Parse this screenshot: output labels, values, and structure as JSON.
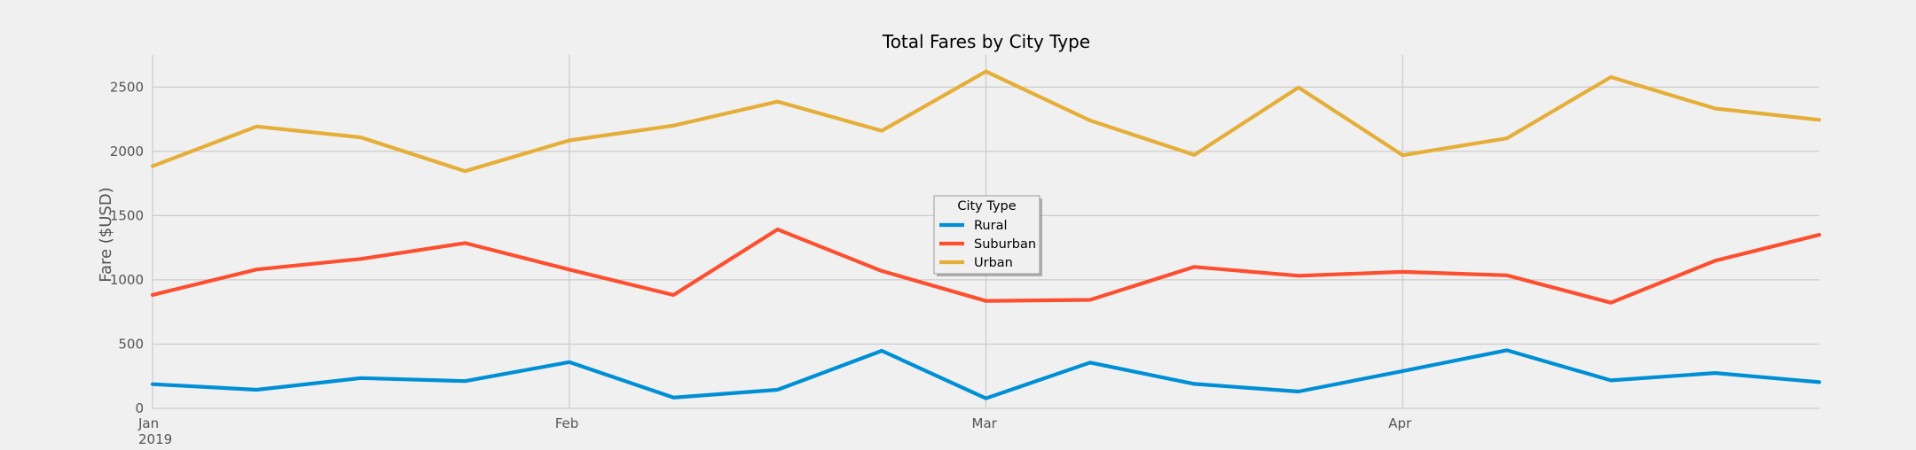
{
  "chart_data": {
    "type": "line",
    "title": "Total Fares by City Type",
    "xlabel": "",
    "ylabel": "Fare ($USD)",
    "x_range": [
      "2019-01-06",
      "2019-04-28"
    ],
    "x": [
      "2019-01-06",
      "2019-01-13",
      "2019-01-20",
      "2019-01-27",
      "2019-02-03",
      "2019-02-10",
      "2019-02-17",
      "2019-02-24",
      "2019-03-03",
      "2019-03-10",
      "2019-03-17",
      "2019-03-24",
      "2019-03-31",
      "2019-04-07",
      "2019-04-14",
      "2019-04-21",
      "2019-04-28"
    ],
    "x_ticks": [
      {
        "date": "2019-01-06",
        "label": "Jan",
        "sublabel": "2019"
      },
      {
        "date": "2019-02-03",
        "label": "Feb",
        "sublabel": ""
      },
      {
        "date": "2019-03-03",
        "label": "Mar",
        "sublabel": ""
      },
      {
        "date": "2019-03-31",
        "label": "Apr",
        "sublabel": ""
      }
    ],
    "ylim": [
      0,
      2750
    ],
    "y_ticks": [
      0,
      500,
      1000,
      1500,
      2000,
      2500
    ],
    "grid": true,
    "legend_title": "City Type",
    "legend_position": "center",
    "series": [
      {
        "name": "Rural",
        "color": "#008fd5",
        "values": [
          188,
          145,
          236,
          212,
          360,
          84,
          145,
          448,
          78,
          356,
          190,
          131,
          290,
          452,
          218,
          275,
          204
        ]
      },
      {
        "name": "Suburban",
        "color": "#fc4f30",
        "values": [
          883,
          1081,
          1163,
          1286,
          1080,
          882,
          1392,
          1069,
          836,
          844,
          1101,
          1032,
          1062,
          1035,
          822,
          1149,
          1350
        ]
      },
      {
        "name": "Urban",
        "color": "#e5ae38",
        "values": [
          1884,
          2193,
          2108,
          1846,
          2085,
          2200,
          2387,
          2160,
          2621,
          2240,
          1972,
          2497,
          1970,
          2101,
          2578,
          2333,
          2245
        ]
      }
    ]
  }
}
